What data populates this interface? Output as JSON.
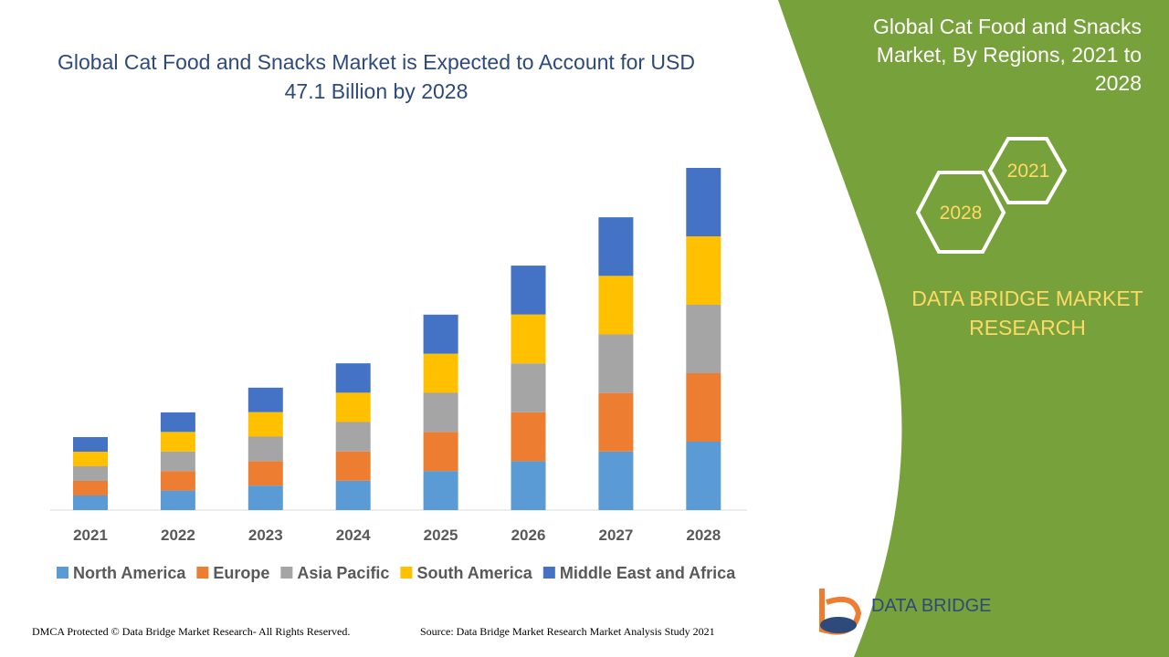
{
  "chart_data": {
    "type": "stacked_bar",
    "title": "Global Cat Food and Snacks Market is Expected to Account for USD 47.1 Billion by 2028",
    "categories": [
      "2021",
      "2022",
      "2023",
      "2024",
      "2025",
      "2026",
      "2027",
      "2028"
    ],
    "series": [
      {
        "name": "North America",
        "color": "#5b9bd5",
        "values": [
          2.01,
          2.69,
          3.37,
          4.04,
          5.38,
          6.73,
          8.06,
          9.42
        ]
      },
      {
        "name": "Europe",
        "color": "#ed7d31",
        "values": [
          2.01,
          2.69,
          3.37,
          4.04,
          5.38,
          6.73,
          8.06,
          9.42
        ]
      },
      {
        "name": "Asia Pacific",
        "color": "#a5a5a5",
        "values": [
          2.01,
          2.69,
          3.37,
          4.04,
          5.38,
          6.73,
          8.06,
          9.42
        ]
      },
      {
        "name": "South America",
        "color": "#ffc000",
        "values": [
          2.01,
          2.69,
          3.37,
          4.04,
          5.38,
          6.73,
          8.06,
          9.42
        ]
      },
      {
        "name": "Middle East and Africa",
        "color": "#4472c4",
        "values": [
          2.01,
          2.69,
          3.37,
          4.04,
          5.38,
          6.73,
          8.06,
          9.42
        ]
      }
    ],
    "legend": "bottom"
  },
  "panel": {
    "title": "Global Cat Food and Snacks Market, By Regions, 2021 to 2028",
    "hex_labels": [
      "2021",
      "2028"
    ],
    "brand": "DATA BRIDGE MARKET RESEARCH"
  },
  "footer": {
    "copyright": "DMCA Protected © Data Bridge Market Research- All Rights Reserved.",
    "source": "Source: Data Bridge Market Research Market Analysis Study 2021",
    "logo": "DATA BRIDGE"
  }
}
